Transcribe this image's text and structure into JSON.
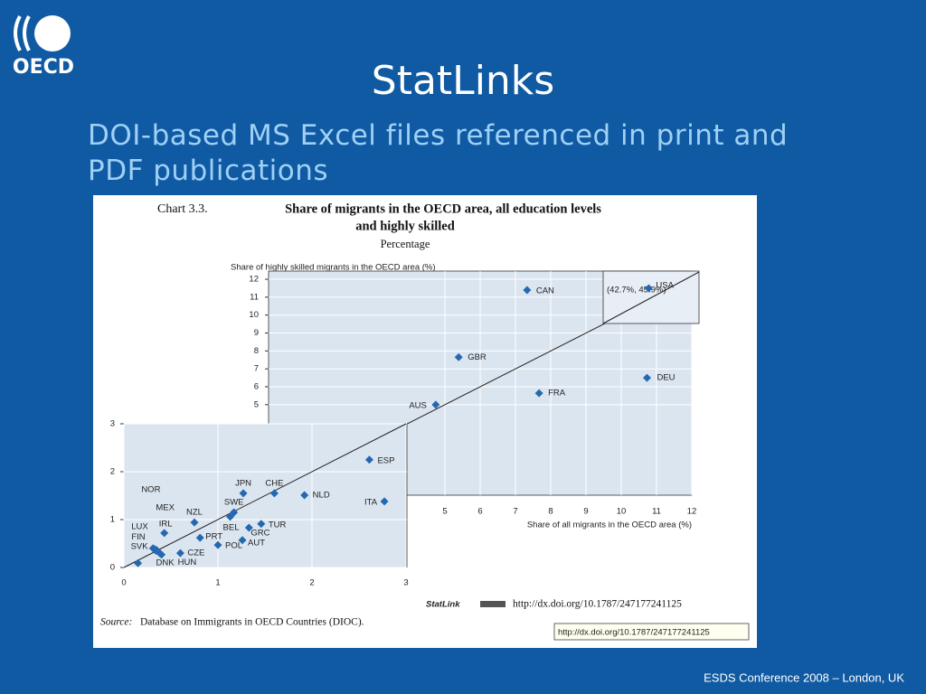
{
  "slide": {
    "logo": "OECD",
    "title": "StatLinks",
    "subtitle": "DOI-based MS Excel files referenced in print and PDF publications",
    "footer": "ESDS Conference 2008 – London, UK"
  },
  "chart_note": {
    "number": "Chart 3.3.",
    "source_label": "Source:",
    "source": "Database on Immigrants in OECD Countries (DIOC).",
    "statlink": "StatLink",
    "statlink_url": "http://dx.doi.org/10.1787/247177241125",
    "tooltip": "http://dx.doi.org/10.1787/247177241125"
  },
  "chart_data": [
    {
      "type": "scatter",
      "title": [
        "Share of migrants in the OECD area, all education levels",
        "and highly skilled"
      ],
      "subtitle": "Percentage",
      "xlabel": "Share of all migrants in the OECD area (%)",
      "ylabel": "Share of highly skilled migrants in the OECD area (%)",
      "xlim": [
        0,
        12
      ],
      "ylim": [
        0,
        12
      ],
      "xticks": [
        5,
        6,
        7,
        8,
        9,
        10,
        11,
        12
      ],
      "yticks": [
        5,
        6,
        7,
        8,
        9,
        10,
        11,
        12
      ],
      "color": "#2468b0",
      "grid": true,
      "diagonal": true,
      "labels": [
        "CAN",
        "GBR",
        "DEU",
        "FRA",
        "AUS",
        "USA"
      ],
      "x": [
        7.33,
        5.39,
        10.73,
        7.67,
        4.74,
        10.78
      ],
      "values": [
        11.4,
        7.65,
        6.5,
        5.64,
        5.0,
        11.5
      ],
      "annotation": "(42.7%, 45.9%)"
    },
    {
      "type": "scatter",
      "xlim": [
        0,
        3
      ],
      "ylim": [
        0,
        3
      ],
      "xticks": [
        0,
        1,
        2,
        3
      ],
      "yticks": [
        0,
        1,
        2,
        3
      ],
      "color": "#2468b0",
      "grid": true,
      "diagonal": true,
      "labels": [
        "ESP",
        "ITA",
        "NLD",
        "CHE",
        "JPN",
        "SWE",
        "BEL",
        "TUR",
        "GRC",
        "AUT",
        "POL",
        "PRT",
        "NZL",
        "IRL",
        "CZE",
        "NOR",
        "MEX",
        "LUX",
        "FIN",
        "SVK",
        "DNK",
        "HUN"
      ],
      "x": [
        2.61,
        2.77,
        1.92,
        1.6,
        1.27,
        1.17,
        1.13,
        1.46,
        1.33,
        1.26,
        1.0,
        0.81,
        0.75,
        0.43,
        0.6,
        0.33,
        0.35,
        0.31,
        0.34,
        0.15,
        0.38,
        0.4
      ],
      "values": [
        2.25,
        1.38,
        1.51,
        1.55,
        1.55,
        1.15,
        1.06,
        0.91,
        0.83,
        0.57,
        0.47,
        0.62,
        0.94,
        0.72,
        0.3,
        0.38,
        0.36,
        0.4,
        0.35,
        0.09,
        0.3,
        0.27
      ]
    }
  ]
}
